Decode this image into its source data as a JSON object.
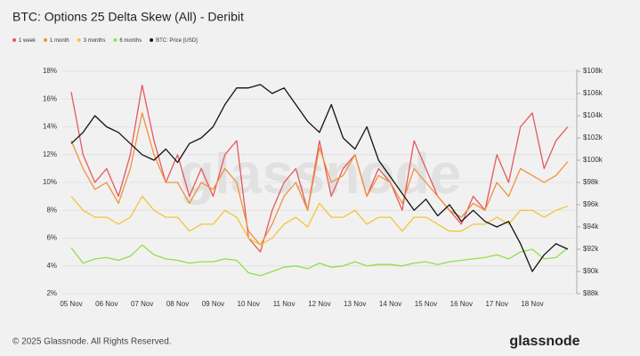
{
  "chart_data": {
    "type": "line",
    "title": "BTC: Options 25 Delta Skew (All) - Deribit",
    "categories": [
      "05 Nov",
      null,
      null,
      "06 Nov",
      null,
      null,
      "07 Nov",
      null,
      null,
      "08 Nov",
      null,
      null,
      "09 Nov",
      null,
      null,
      "10 Nov",
      null,
      null,
      "11 Nov",
      null,
      null,
      "12 Nov",
      null,
      null,
      "13 Nov",
      null,
      null,
      "14 Nov",
      null,
      null,
      "15 Nov",
      null,
      null,
      "16 Nov",
      null,
      null,
      "17 Nov",
      null,
      null,
      "18 Nov",
      null,
      null,
      null
    ],
    "series": [
      {
        "name": "1 week",
        "color": "#e8575f",
        "values": [
          16.5,
          12,
          10,
          11,
          9,
          12,
          17,
          13,
          10,
          12,
          9,
          11,
          9,
          12,
          13,
          6,
          5,
          8,
          10,
          11,
          8,
          13,
          9,
          11,
          12,
          9,
          11,
          10,
          8,
          13,
          11,
          9,
          8,
          7,
          9,
          8,
          12,
          10,
          14,
          15,
          11,
          13,
          14
        ]
      },
      {
        "name": "1 month",
        "color": "#f0923a",
        "values": [
          13,
          11,
          9.5,
          10,
          8.5,
          11,
          15,
          12,
          10,
          10,
          8.5,
          10,
          9.5,
          11,
          10,
          6.5,
          5.5,
          7,
          9,
          10,
          8,
          12.5,
          10,
          10.5,
          12,
          9,
          10.5,
          10,
          8.5,
          11,
          10,
          9,
          8,
          7.5,
          8.5,
          8,
          10,
          9,
          11,
          10.5,
          10,
          10.5,
          11.5
        ]
      },
      {
        "name": "3 months",
        "color": "#f2c53a",
        "values": [
          9,
          8,
          7.5,
          7.5,
          7,
          7.5,
          9,
          8,
          7.5,
          7.5,
          6.5,
          7,
          7,
          8,
          7.5,
          6,
          5.5,
          6,
          7,
          7.5,
          6.8,
          8.5,
          7.5,
          7.5,
          8,
          7,
          7.5,
          7.5,
          6.5,
          7.5,
          7.5,
          7,
          6.5,
          6.5,
          7,
          7,
          7.5,
          7,
          8,
          8,
          7.5,
          8,
          8.3
        ]
      },
      {
        "name": "6 months",
        "color": "#8fe04a",
        "values": [
          5.3,
          4.2,
          4.5,
          4.6,
          4.4,
          4.7,
          5.5,
          4.8,
          4.5,
          4.4,
          4.2,
          4.3,
          4.3,
          4.5,
          4.4,
          3.5,
          3.3,
          3.6,
          3.9,
          4,
          3.8,
          4.2,
          3.9,
          4,
          4.3,
          4,
          4.1,
          4.1,
          4,
          4.2,
          4.3,
          4.1,
          4.3,
          4.4,
          4.5,
          4.6,
          4.8,
          4.5,
          5,
          5.2,
          4.5,
          4.6,
          5.3
        ]
      },
      {
        "name": "BTC: Price [USD]",
        "color": "#111111",
        "axis": "y2",
        "values": [
          101500,
          102500,
          104000,
          103000,
          102500,
          101500,
          100500,
          100000,
          101000,
          99800,
          101500,
          102000,
          103000,
          105000,
          106500,
          106500,
          106800,
          106000,
          106500,
          105000,
          103500,
          102500,
          105000,
          102000,
          101000,
          103000,
          100000,
          98500,
          97000,
          95500,
          96500,
          95000,
          96000,
          94500,
          95500,
          94500,
          94000,
          94500,
          92500,
          90000,
          91500,
          92500,
          92000
        ]
      }
    ],
    "ylim": [
      2,
      18
    ],
    "yticks": [
      {
        "value": 2,
        "label": "2%"
      },
      {
        "value": 4,
        "label": "4%"
      },
      {
        "value": 6,
        "label": "6%"
      },
      {
        "value": 8,
        "label": "8%"
      },
      {
        "value": 10,
        "label": "10%"
      },
      {
        "value": 12,
        "label": "12%"
      },
      {
        "value": 14,
        "label": "14%"
      },
      {
        "value": 16,
        "label": "16%"
      },
      {
        "value": 18,
        "label": "18%"
      }
    ],
    "y2lim": [
      88000,
      108000
    ],
    "y2ticks": [
      {
        "value": 88000,
        "label": "$88k"
      },
      {
        "value": 90000,
        "label": "$90k"
      },
      {
        "value": 92000,
        "label": "$92k"
      },
      {
        "value": 94000,
        "label": "$94k"
      },
      {
        "value": 96000,
        "label": "$96k"
      },
      {
        "value": 98000,
        "label": "$98k"
      },
      {
        "value": 100000,
        "label": "$100k"
      },
      {
        "value": 102000,
        "label": "$102k"
      },
      {
        "value": 104000,
        "label": "$104k"
      },
      {
        "value": 106000,
        "label": "$106k"
      },
      {
        "value": 108000,
        "label": "$108k"
      }
    ],
    "grid": true
  },
  "footer": "© 2025 Glassnode. All Rights Reserved.",
  "brand": "glassnode"
}
